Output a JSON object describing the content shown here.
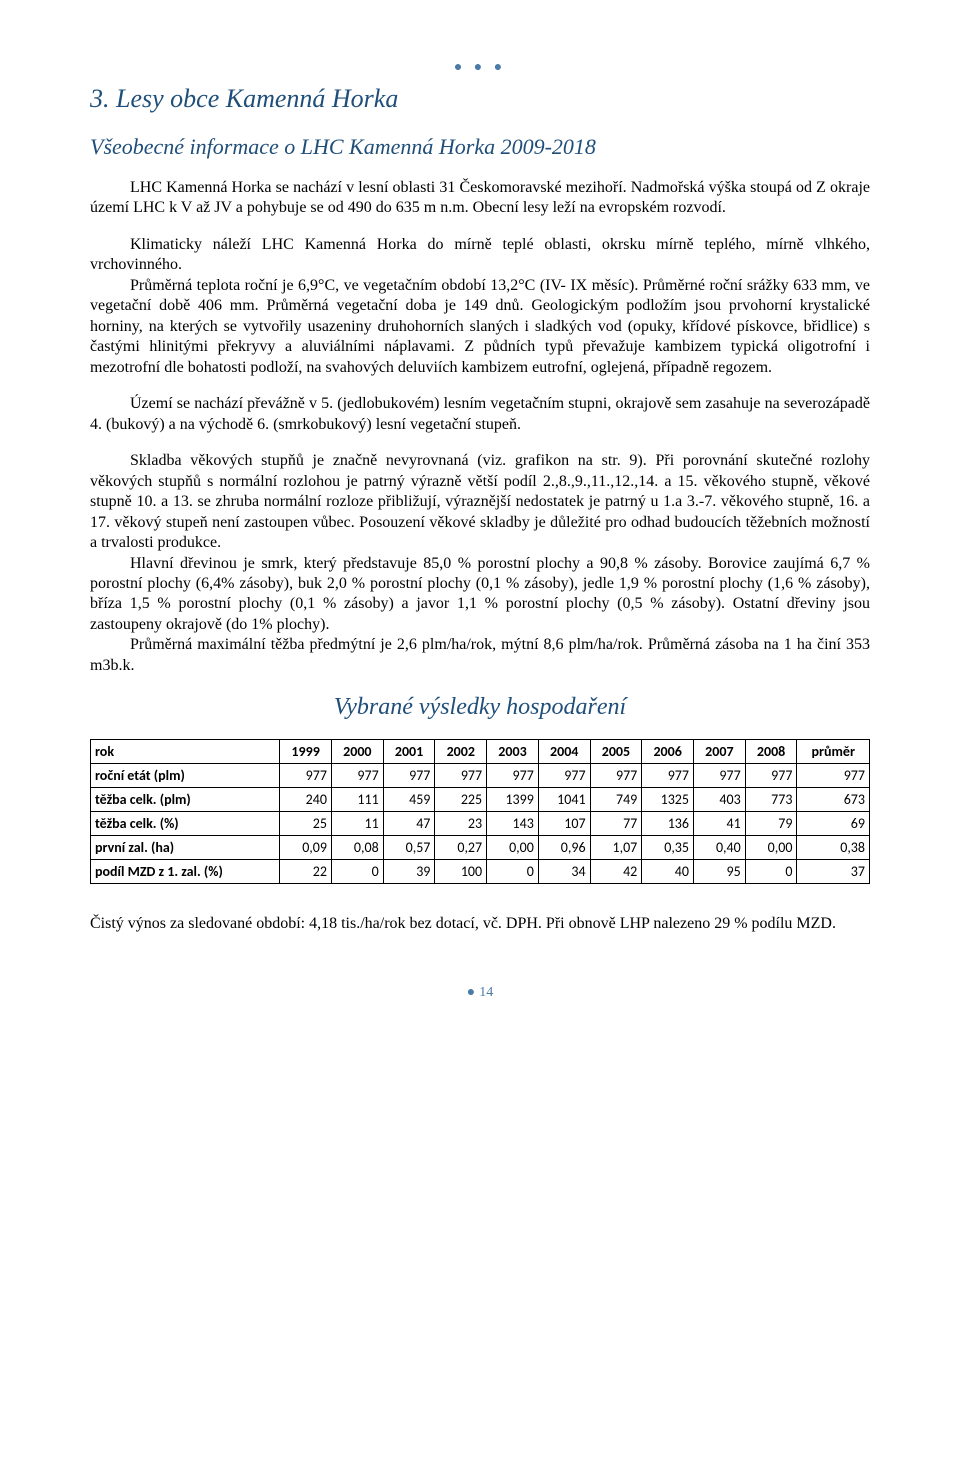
{
  "dots_top": "● ● ●",
  "heading": "3. Lesy obce Kamenná Horka",
  "subheading": "Všeobecné informace o LHC Kamenná Horka 2009-2018",
  "para1": "LHC Kamenná Horka se nachází v lesní oblasti 31 Českomoravské mezihoří. Nadmořská výška stoupá od Z okraje území LHC k V až JV a pohybuje se od 490 do 635 m n.m. Obecní lesy leží na evropském rozvodí.",
  "para2": "Klimaticky náleží LHC Kamenná Horka do mírně teplé oblasti, okrsku mírně teplého, mírně vlhkého, vrchovinného.",
  "para3": "Průměrná teplota roční je 6,9°C, ve vegetačním období 13,2°C (IV- IX měsíc). Průměrné roční srážky 633 mm, ve vegetační době 406 mm. Průměrná vegetační doba je 149 dnů. Geologickým podložím jsou prvohorní krystalické horniny, na kterých se vytvořily usazeniny druhohorních slaných i sladkých vod (opuky, křídové pískovce, břidlice) s častými hlinitými překryvy a aluviálními náplavami. Z půdních typů převažuje kambizem typická oligotrofní i mezotrofní dle bohatosti podloží, na svahových deluviích kambizem eutrofní, oglejená, případně regozem.",
  "para4": "Území se nachází převážně v 5. (jedlobukovém) lesním vegetačním stupni, okrajově sem zasahuje na severozápadě 4. (bukový) a na východě 6. (smrkobukový) lesní vegetační stupeň.",
  "para5": "Skladba věkových stupňů je značně nevyrovnaná (viz. grafikon na str. 9). Při porovnání skutečné rozlohy věkových stupňů s normální rozlohou je patrný výrazně větší podíl 2.,8.,9.,11.,12.,14. a 15. věkového stupně, věkové stupně 10. a 13. se zhruba normální rozloze přibližují, výraznější nedostatek je patrný u 1.a 3.-7. věkového stupně, 16. a 17. věkový stupeň není zastoupen vůbec. Posouzení věkové skladby je důležité pro odhad budoucích těžebních možností a trvalosti produkce.",
  "para6": "Hlavní dřevinou je smrk, který představuje 85,0 % porostní plochy a 90,8 % zásoby. Borovice zaujímá 6,7 % porostní plochy (6,4% zásoby), buk 2,0 % porostní plochy (0,1 % zásoby), jedle 1,9 % porostní plochy (1,6 % zásoby), bříza 1,5 % porostní plochy (0,1 % zásoby) a javor 1,1 % porostní plochy (0,5 % zásoby). Ostatní dřeviny jsou zastoupeny okrajově (do 1% plochy).",
  "para7": "Průměrná maximální těžba předmýtní je 2,6 plm/ha/rok, mýtní 8,6 plm/ha/rok. Průměrná zásoba na 1 ha činí 353 m3b.k.",
  "results_heading": "Vybrané výsledky hospodaření",
  "table": {
    "header_first": "rok",
    "year_cols": [
      "1999",
      "2000",
      "2001",
      "2002",
      "2003",
      "2004",
      "2005",
      "2006",
      "2007",
      "2008"
    ],
    "header_last": "průměr",
    "rows": [
      {
        "label": "roční etát (plm)",
        "vals": [
          "977",
          "977",
          "977",
          "977",
          "977",
          "977",
          "977",
          "977",
          "977",
          "977"
        ],
        "avg": "977"
      },
      {
        "label": "těžba celk. (plm)",
        "vals": [
          "240",
          "111",
          "459",
          "225",
          "1399",
          "1041",
          "749",
          "1325",
          "403",
          "773"
        ],
        "avg": "673"
      },
      {
        "label": "těžba celk. (%)",
        "vals": [
          "25",
          "11",
          "47",
          "23",
          "143",
          "107",
          "77",
          "136",
          "41",
          "79"
        ],
        "avg": "69"
      },
      {
        "label": "první zal. (ha)",
        "vals": [
          "0,09",
          "0,08",
          "0,57",
          "0,27",
          "0,00",
          "0,96",
          "1,07",
          "0,35",
          "0,40",
          "0,00"
        ],
        "avg": "0,38"
      },
      {
        "label": "podíl MZD z 1. zal. (%)",
        "vals": [
          "22",
          "0",
          "39",
          "100",
          "0",
          "34",
          "42",
          "40",
          "95",
          "0"
        ],
        "avg": "37"
      }
    ]
  },
  "footer_para": "Čistý výnos za sledované období: 4,18 tis./ha/rok bez dotací, vč. DPH. Při obnově LHP nalezeno 29 % podílu MZD.",
  "page_number": "14",
  "colors": {
    "heading_color": "#1f4e79",
    "accent_color": "#4a7ba6",
    "text_color": "#000000",
    "background": "#ffffff",
    "border": "#000000"
  },
  "typography": {
    "body_fontsize_pt": 12,
    "heading_fontsize_pt": 20,
    "subheading_fontsize_pt": 16,
    "body_font": "Times New Roman",
    "table_font": "Calibri"
  }
}
